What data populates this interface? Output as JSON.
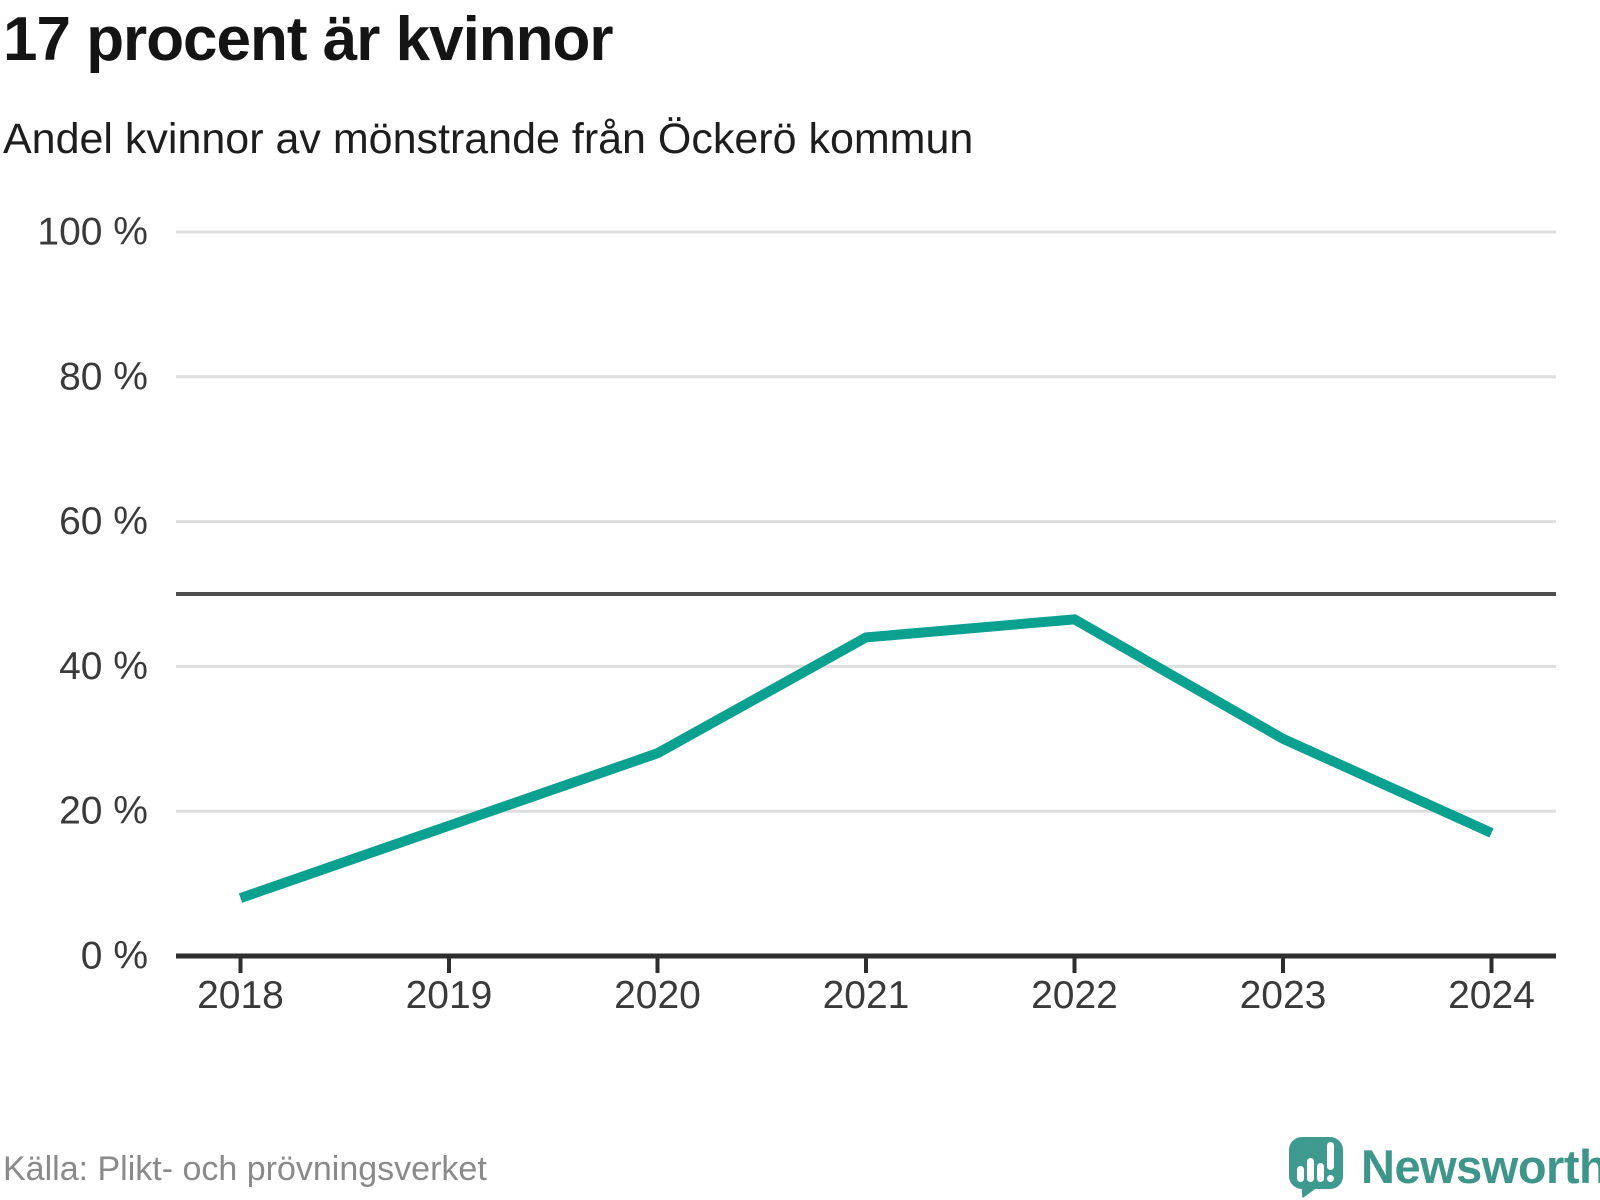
{
  "header": {
    "title": "17 procent är kvinnor",
    "subtitle": "Andel kvinnor av mönstrande från Öckerö kommun"
  },
  "chart_data": {
    "type": "line",
    "title": "17 procent är kvinnor",
    "subtitle": "Andel kvinnor av mönstrande från Öckerö kommun",
    "x": [
      2018,
      2019,
      2020,
      2021,
      2022,
      2023,
      2024
    ],
    "x_labels": [
      "2018",
      "2019",
      "2020",
      "2021",
      "2022",
      "2023",
      "2024"
    ],
    "series": [
      {
        "name": "Andel kvinnor av mönstrande",
        "values": [
          8,
          18,
          28,
          44,
          46.5,
          30,
          17
        ]
      }
    ],
    "ylim": [
      0,
      100
    ],
    "yticks": [
      {
        "v": 0,
        "label": "0 %"
      },
      {
        "v": 20,
        "label": "20 %"
      },
      {
        "v": 40,
        "label": "40 %"
      },
      {
        "v": 60,
        "label": "60 %"
      },
      {
        "v": 80,
        "label": "80 %"
      },
      {
        "v": 100,
        "label": "100 %"
      }
    ],
    "reference_line": 50,
    "grid": true,
    "legend": "none",
    "xlabel": "",
    "ylabel": ""
  },
  "footer": {
    "source": "Källa: Plikt- och prövningsverket",
    "brand": "Newsworthy"
  },
  "colors": {
    "line": "#0ba191",
    "grid": "#dedede",
    "reference_line": "#4d4d4d",
    "axis": "#2e2e2e",
    "tick_text": "#3a3a3a",
    "title_text": "#141414",
    "muted_text": "#8a8a8a",
    "brand": "#3e968b"
  },
  "icons": {
    "brand_icon": "newsworthy-speech-bubble-chart-icon"
  }
}
